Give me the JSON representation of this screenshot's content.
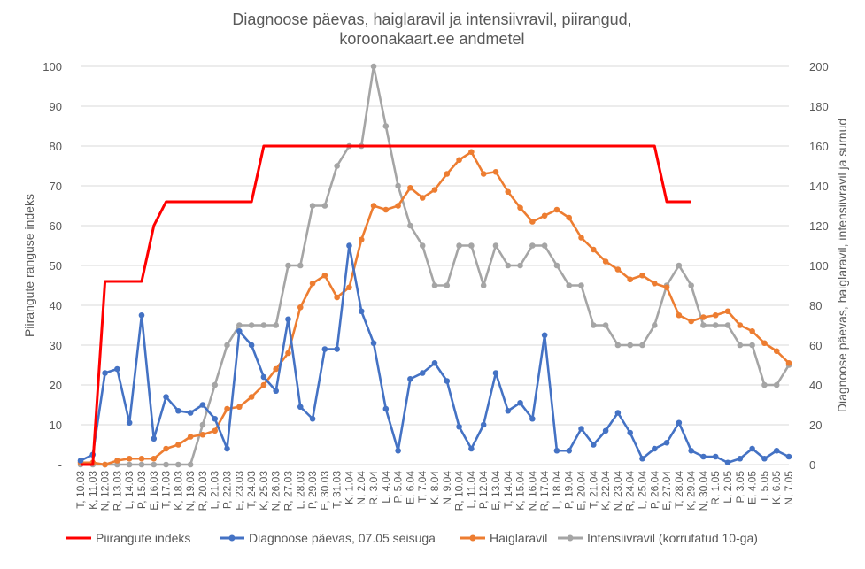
{
  "chart_data": {
    "type": "line",
    "title": "Diagnoose päevas, haiglaravil ja intensiivravil, piirangud, koroonakaart.ee andmetel",
    "title_lines": [
      "Diagnoose päevas, haiglaravil ja intensiivravil, piirangud,",
      "koroonakaart.ee andmetel"
    ],
    "ylabel_left": "Piirangute ranguse indeks",
    "ylabel_right": "Diagnoose päevas, haiglaravil, intensiivravil ja surnud",
    "ylim_left": [
      0,
      100
    ],
    "ylim_right": [
      0,
      200
    ],
    "left_ticks": [
      "-",
      "10",
      "20",
      "30",
      "40",
      "50",
      "60",
      "70",
      "80",
      "90",
      "100"
    ],
    "right_ticks": [
      "0",
      "20",
      "40",
      "60",
      "80",
      "100",
      "120",
      "140",
      "160",
      "180",
      "200"
    ],
    "grid": true,
    "legend_position": "bottom",
    "categories": [
      "T, 10.03",
      "K, 11.03",
      "N, 12.03",
      "R, 13.03",
      "L, 14.03",
      "P, 15.03",
      "E, 16.03",
      "T, 17.03",
      "K, 18.03",
      "N, 19.03",
      "R, 20.03",
      "L, 21.03",
      "P, 22.03",
      "E, 23.03",
      "T, 24.03",
      "K, 25.03",
      "N, 26.03",
      "R, 27.03",
      "L, 28.03",
      "P, 29.03",
      "E, 30.03",
      "T, 31.03",
      "K, 1.04",
      "N, 2.04",
      "R, 3.04",
      "L, 4.04",
      "P, 5.04",
      "E, 6.04",
      "T, 7.04",
      "K, 8.04",
      "N, 9.04",
      "R, 10.04",
      "L, 11.04",
      "P, 12.04",
      "E, 13.04",
      "T, 14.04",
      "K, 15.04",
      "N, 16.04",
      "R, 17.04",
      "L, 18.04",
      "P, 19.04",
      "E, 20.04",
      "T, 21.04",
      "K, 22.04",
      "N, 23.04",
      "R, 24.04",
      "L, 25.04",
      "P, 26.04",
      "E, 27.04",
      "T, 28.04",
      "K, 29.04",
      "N, 30.04",
      "R, 1.05",
      "L, 2.05",
      "P, 3.05",
      "E, 4.05",
      "T, 5.05",
      "K, 6.05",
      "N, 7.05"
    ],
    "x_tick_labels": [
      "T, 10.03",
      "K, 11.03",
      "N, 12.03",
      "R, 13.03",
      "L, 14.03",
      "P, 15.03",
      "E, 16.03",
      "T, 17.03",
      "K, 18.03",
      "N, 19.03",
      "R, 20.03",
      "L, 21.03",
      "P, 22.03",
      "E, 23.03",
      "T, 24.03",
      "K, 25.03",
      "N, 26.03",
      "R, 27.03",
      "L, 28.03",
      "P, 29.03",
      "E, 30.03",
      "T, 31.03",
      "K, 1.04",
      "N, 2.04",
      "R, 3.04",
      "L, 4.04",
      "P, 5.04",
      "E, 6.04",
      "T, 7.04",
      "K, 8.04",
      "N, 9.04",
      "R, 10.04",
      "L, 11.04",
      "P, 12.04",
      "E, 13.04",
      "T, 14.04",
      "K, 15.04",
      "N, 16.04",
      "R, 17.04",
      "L, 18.04",
      "P, 19.04",
      "E, 20.04",
      "T, 21.04",
      "K, 22.04",
      "N, 23.04",
      "R, 24.04",
      "L, 25.04",
      "P, 26.04",
      "E, 27.04",
      "T, 28.04",
      "K, 29.04",
      "N, 30.04",
      "R, 1.05",
      "L, 2.05",
      "P, 3.05",
      "E, 4.05",
      "T, 5.05",
      "K, 6.05",
      "N, 7.05"
    ],
    "series": [
      {
        "name": "Piirangute indeks",
        "axis": "left",
        "color": "#ff0000",
        "markers": false,
        "values": [
          0,
          0,
          46,
          46,
          46,
          46,
          60,
          66,
          66,
          66,
          66,
          66,
          66,
          66,
          66,
          80,
          80,
          80,
          80,
          80,
          80,
          80,
          80,
          80,
          80,
          80,
          80,
          80,
          80,
          80,
          80,
          80,
          80,
          80,
          80,
          80,
          80,
          80,
          80,
          80,
          80,
          80,
          80,
          80,
          80,
          80,
          80,
          80,
          66,
          66,
          66,
          null,
          null,
          null,
          null,
          null,
          null,
          null,
          null
        ]
      },
      {
        "name": "Diagnoose päevas, 07.05 seisuga",
        "axis": "right",
        "color": "#4472c4",
        "markers": true,
        "values": [
          2,
          5,
          46,
          48,
          21,
          75,
          13,
          34,
          27,
          26,
          30,
          23,
          8,
          67,
          60,
          44,
          37,
          73,
          29,
          23,
          58,
          58,
          110,
          77,
          61,
          28,
          7,
          43,
          46,
          51,
          42,
          19,
          8,
          20,
          46,
          27,
          31,
          23,
          65,
          7,
          7,
          18,
          10,
          17,
          26,
          16,
          3,
          8,
          11,
          21,
          7,
          4,
          4,
          1,
          3,
          8,
          3,
          7,
          4
        ]
      },
      {
        "name": "Haiglaravil",
        "axis": "right",
        "color": "#ed7d31",
        "markers": true,
        "values": [
          1,
          1,
          0,
          2,
          3,
          3,
          3,
          8,
          10,
          14,
          15,
          17,
          28,
          29,
          34,
          40,
          48,
          56,
          79,
          91,
          95,
          84,
          89,
          113,
          130,
          128,
          130,
          139,
          134,
          138,
          146,
          153,
          157,
          146,
          147,
          137,
          129,
          122,
          125,
          128,
          124,
          114,
          108,
          102,
          98,
          93,
          95,
          91,
          89,
          75,
          72,
          74,
          75,
          77,
          70,
          67,
          61,
          57,
          51
        ]
      },
      {
        "name": "Intensiivravil  (korrutatud 10-ga)",
        "axis": "right",
        "color": "#a5a5a5",
        "markers": true,
        "values": [
          0,
          0,
          0,
          0,
          0,
          0,
          0,
          0,
          0,
          0,
          20,
          40,
          60,
          70,
          70,
          70,
          70,
          100,
          100,
          130,
          130,
          150,
          160,
          160,
          200,
          170,
          140,
          120,
          110,
          90,
          90,
          110,
          110,
          90,
          110,
          100,
          100,
          110,
          110,
          100,
          90,
          90,
          70,
          70,
          60,
          60,
          60,
          70,
          90,
          100,
          90,
          70,
          70,
          70,
          60,
          60,
          40,
          40,
          50
        ]
      }
    ]
  }
}
